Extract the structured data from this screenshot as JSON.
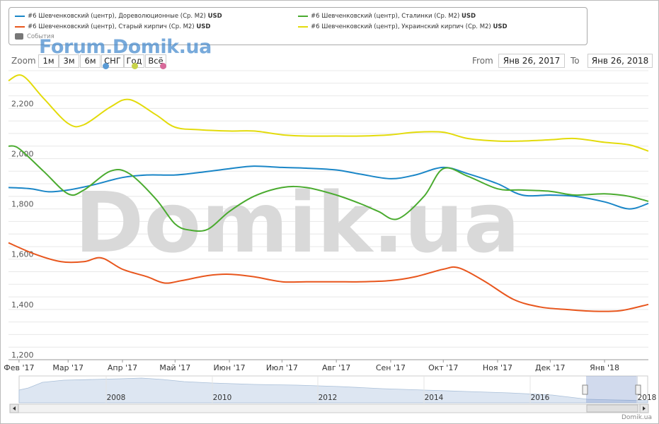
{
  "legend": {
    "items": [
      {
        "label": "#6 Шевченковский (центр), Дореволюционные (Ср. М2)",
        "unit": "USD",
        "color": "#1a86c7"
      },
      {
        "label": "#6 Шевченковский (центр), Сталинки (Ср. М2)",
        "unit": "USD",
        "color": "#4aab2f"
      },
      {
        "label": "#6 Шевченковский (центр), Старый кирпич (Ср. М2)",
        "unit": "USD",
        "color": "#e8561d"
      },
      {
        "label": "#6 Шевченковский (центр), Украинский кирпич (Ср. М2)",
        "unit": "USD",
        "color": "#e3db0b"
      }
    ],
    "events_label": "События"
  },
  "zoom": {
    "label": "Zoom",
    "buttons": [
      "1м",
      "3м",
      "6м",
      "СНГ",
      "Год",
      "Всё"
    ],
    "marker_colors": [
      "#5b9bd5",
      "#c8d34a",
      "#d86a9a"
    ]
  },
  "range": {
    "from_label": "From",
    "from_value": "Янв 26, 2017",
    "to_label": "To",
    "to_value": "Янв 26, 2018"
  },
  "watermark_top": "Forum.Domik.ua",
  "watermark_big": "Domik.ua",
  "credit": "Domik.ua",
  "chart_data": {
    "type": "line",
    "ylim": [
      1200,
      2350
    ],
    "y_ticks": [
      1200,
      1400,
      1600,
      1800,
      2000,
      2200
    ],
    "y_tick_labels": [
      "1,200",
      "1,400",
      "1,600",
      "1,800",
      "2,000",
      "2,200"
    ],
    "x_tick_labels": [
      "Фев '17",
      "Мар '17",
      "Апр '17",
      "Май '17",
      "Июн '17",
      "Июл '17",
      "Авг '17",
      "Сен '17",
      "Окт '17",
      "Ноя '17",
      "Дек '17",
      "Янв '18"
    ],
    "grid": true,
    "x_range_dates": [
      "2017-01-26",
      "2018-01-26"
    ],
    "series": [
      {
        "name": "#6 Шевченковский (центр), Дореволюционные (Ср. М2)",
        "color": "#1a86c7",
        "x": [
          "2017-01-26",
          "2017-02-08",
          "2017-02-18",
          "2017-03-01",
          "2017-03-15",
          "2017-04-01",
          "2017-04-15",
          "2017-05-01",
          "2017-05-15",
          "2017-06-01",
          "2017-06-15",
          "2017-07-01",
          "2017-07-15",
          "2017-08-01",
          "2017-08-15",
          "2017-09-01",
          "2017-09-15",
          "2017-10-01",
          "2017-10-15",
          "2017-11-01",
          "2017-11-15",
          "2017-12-01",
          "2017-12-15",
          "2018-01-01",
          "2018-01-15",
          "2018-01-26"
        ],
        "y": [
          1885,
          1880,
          1868,
          1875,
          1895,
          1925,
          1935,
          1935,
          1945,
          1960,
          1970,
          1965,
          1962,
          1955,
          1938,
          1920,
          1935,
          1965,
          1940,
          1900,
          1855,
          1855,
          1850,
          1828,
          1800,
          1822
        ]
      },
      {
        "name": "#6 Шевченковский (центр), Сталинки (Ср. М2)",
        "color": "#4aab2f",
        "x": [
          "2017-01-26",
          "2017-02-01",
          "2017-02-15",
          "2017-03-01",
          "2017-03-10",
          "2017-03-25",
          "2017-04-05",
          "2017-04-20",
          "2017-05-01",
          "2017-05-10",
          "2017-05-20",
          "2017-06-01",
          "2017-06-15",
          "2017-07-01",
          "2017-07-15",
          "2017-08-01",
          "2017-08-15",
          "2017-08-25",
          "2017-09-05",
          "2017-09-20",
          "2017-10-01",
          "2017-10-15",
          "2017-11-01",
          "2017-11-15",
          "2017-12-01",
          "2017-12-15",
          "2018-01-01",
          "2018-01-15",
          "2018-01-26"
        ],
        "y": [
          2050,
          2040,
          1950,
          1860,
          1875,
          1950,
          1940,
          1840,
          1740,
          1715,
          1720,
          1790,
          1850,
          1885,
          1885,
          1855,
          1820,
          1790,
          1760,
          1850,
          1960,
          1930,
          1880,
          1875,
          1870,
          1855,
          1860,
          1850,
          1830
        ]
      },
      {
        "name": "#6 Шевченковский (центр), Старый кирпич (Ср. М2)",
        "color": "#e8561d",
        "x": [
          "2017-01-26",
          "2017-02-10",
          "2017-02-25",
          "2017-03-10",
          "2017-03-20",
          "2017-04-01",
          "2017-04-15",
          "2017-04-25",
          "2017-05-05",
          "2017-05-20",
          "2017-06-01",
          "2017-06-15",
          "2017-07-01",
          "2017-07-15",
          "2017-08-01",
          "2017-08-15",
          "2017-09-01",
          "2017-09-15",
          "2017-10-01",
          "2017-10-10",
          "2017-10-25",
          "2017-11-10",
          "2017-11-25",
          "2017-12-10",
          "2017-12-25",
          "2018-01-10",
          "2018-01-26"
        ],
        "y": [
          1665,
          1620,
          1590,
          1590,
          1605,
          1560,
          1530,
          1505,
          1515,
          1535,
          1540,
          1530,
          1510,
          1510,
          1510,
          1510,
          1515,
          1530,
          1560,
          1565,
          1510,
          1440,
          1410,
          1400,
          1393,
          1395,
          1420
        ]
      },
      {
        "name": "#6 Шевченковский (центр), Украинский кирпич (Ср. М2)",
        "color": "#e3db0b",
        "x": [
          "2017-01-26",
          "2017-02-03",
          "2017-02-15",
          "2017-03-01",
          "2017-03-10",
          "2017-03-25",
          "2017-04-05",
          "2017-04-20",
          "2017-05-01",
          "2017-05-15",
          "2017-06-01",
          "2017-06-15",
          "2017-07-01",
          "2017-07-15",
          "2017-08-01",
          "2017-08-15",
          "2017-09-01",
          "2017-09-15",
          "2017-10-01",
          "2017-10-15",
          "2017-11-01",
          "2017-11-15",
          "2017-12-01",
          "2017-12-15",
          "2018-01-01",
          "2018-01-15",
          "2018-01-26"
        ],
        "y": [
          2310,
          2330,
          2240,
          2140,
          2135,
          2205,
          2235,
          2175,
          2125,
          2115,
          2110,
          2110,
          2095,
          2090,
          2090,
          2090,
          2095,
          2105,
          2105,
          2080,
          2070,
          2070,
          2075,
          2080,
          2065,
          2055,
          2030
        ]
      }
    ]
  },
  "navigator": {
    "year_labels": [
      "2008",
      "2010",
      "2012",
      "2014",
      "2016",
      "2018"
    ]
  }
}
